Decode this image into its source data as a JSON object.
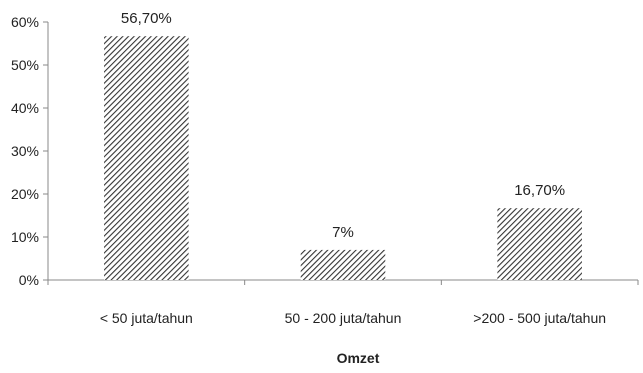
{
  "chart_data": {
    "type": "bar",
    "categories": [
      "< 50 juta/tahun",
      "50 - 200 juta/tahun",
      ">200 - 500 juta/tahun"
    ],
    "values": [
      56.7,
      7,
      16.7
    ],
    "data_labels": [
      "56,70%",
      "7%",
      "16,70%"
    ],
    "xlabel": "Omzet",
    "ylabel": "",
    "ylim": [
      0,
      60
    ],
    "yticks": [
      0,
      10,
      20,
      30,
      40,
      50,
      60
    ],
    "ytick_labels": [
      "0%",
      "10%",
      "20%",
      "30%",
      "40%",
      "50%",
      "60%"
    ],
    "grid": false,
    "bar_pattern": "diagonal-hatch",
    "colors": {
      "bar_hatch": "#333333",
      "axis": "#888888"
    }
  }
}
